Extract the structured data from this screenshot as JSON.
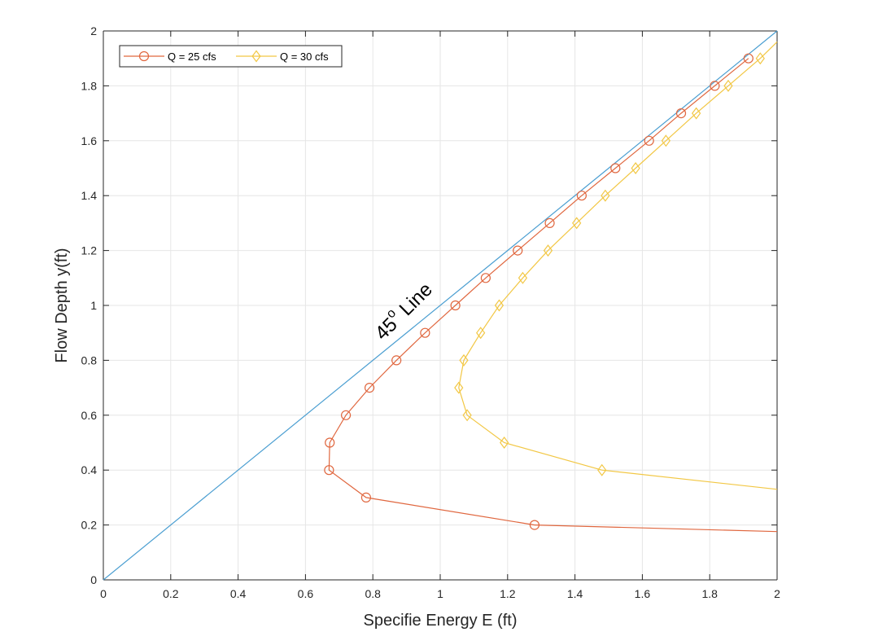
{
  "chart_data": {
    "type": "line",
    "xlabel": "Specifie Energy E (ft)",
    "ylabel": "Flow Depth y(ft)",
    "xlim": [
      0,
      2
    ],
    "ylim": [
      0,
      2
    ],
    "xticks": [
      0,
      0.2,
      0.4,
      0.6,
      0.8,
      1,
      1.2,
      1.4,
      1.6,
      1.8,
      2
    ],
    "yticks": [
      0,
      0.2,
      0.4,
      0.6,
      0.8,
      1,
      1.2,
      1.4,
      1.6,
      1.8,
      2
    ],
    "xtick_labels": [
      "0",
      "0.2",
      "0.4",
      "0.6",
      "0.8",
      "1",
      "1.2",
      "1.4",
      "1.6",
      "1.8",
      "2"
    ],
    "ytick_labels": [
      "0",
      "0.2",
      "0.4",
      "0.6",
      "0.8",
      "1",
      "1.2",
      "1.4",
      "1.6",
      "1.8",
      "2"
    ],
    "grid": true,
    "legend_position": "top-left",
    "annotation": {
      "base": "45",
      "superscript": "o",
      "suffix": " Line",
      "anchor_x": 0.83,
      "anchor_y": 0.87
    },
    "reference_line": {
      "x": [
        0,
        2
      ],
      "y": [
        0,
        2
      ],
      "color": "#4a9ed1"
    },
    "series": [
      {
        "name": "Q = 25 cfs",
        "color": "#e0673f",
        "marker": "circle",
        "x": [
          1.28,
          0.78,
          0.67,
          0.672,
          0.72,
          0.79,
          0.87,
          0.955,
          1.045,
          1.135,
          1.23,
          1.325,
          1.42,
          1.52,
          1.62,
          1.715,
          1.815,
          1.915
        ],
        "y": [
          0.2,
          0.3,
          0.4,
          0.5,
          0.6,
          0.7,
          0.8,
          0.9,
          1.0,
          1.1,
          1.2,
          1.3,
          1.4,
          1.5,
          1.6,
          1.7,
          1.8,
          1.9
        ],
        "tail_x": [
          1.28,
          2.0
        ],
        "tail_y": [
          0.2,
          0.176
        ]
      },
      {
        "name": "Q = 30 cfs",
        "color": "#f2c744",
        "marker": "diamond",
        "x": [
          1.48,
          1.19,
          1.08,
          1.055,
          1.07,
          1.12,
          1.175,
          1.245,
          1.32,
          1.405,
          1.49,
          1.58,
          1.67,
          1.76,
          1.855,
          1.95
        ],
        "y": [
          0.4,
          0.5,
          0.6,
          0.7,
          0.8,
          0.9,
          1.0,
          1.1,
          1.2,
          1.3,
          1.4,
          1.5,
          1.6,
          1.7,
          1.8,
          1.9
        ],
        "tail_x": [
          1.48,
          2.0
        ],
        "tail_y": [
          0.4,
          0.33
        ],
        "head_x": [
          1.95,
          2.0
        ],
        "head_y": [
          1.9,
          1.96
        ]
      }
    ]
  }
}
